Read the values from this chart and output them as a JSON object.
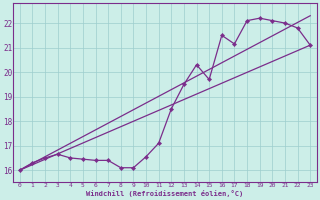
{
  "bg_color": "#cceee8",
  "line_color": "#7b2d8b",
  "grid_color": "#9ecece",
  "xlabel": "Windchill (Refroidissement éolien,°C)",
  "xlim": [
    -0.5,
    23.5
  ],
  "ylim": [
    15.5,
    22.8
  ],
  "yticks": [
    16,
    17,
    18,
    19,
    20,
    21,
    22
  ],
  "xticks": [
    0,
    1,
    2,
    3,
    4,
    5,
    6,
    7,
    8,
    9,
    10,
    11,
    12,
    13,
    14,
    15,
    16,
    17,
    18,
    19,
    20,
    21,
    22,
    23
  ],
  "line1_x": [
    0,
    1,
    2,
    3,
    4,
    5,
    6,
    7,
    8,
    9,
    10,
    11,
    12,
    13,
    14,
    15,
    16,
    17,
    18,
    19,
    20,
    21,
    22,
    23
  ],
  "line1_y": [
    16.0,
    16.3,
    16.5,
    16.65,
    16.5,
    16.45,
    16.4,
    16.4,
    16.1,
    16.1,
    16.55,
    17.1,
    18.5,
    19.5,
    20.3,
    19.7,
    21.5,
    21.15,
    22.1,
    22.2,
    22.1,
    22.0,
    21.8,
    21.1
  ],
  "line2_x": [
    0,
    23
  ],
  "line2_y": [
    16.0,
    21.1
  ],
  "line3_x": [
    0,
    23
  ],
  "line3_y": [
    16.0,
    22.3
  ]
}
